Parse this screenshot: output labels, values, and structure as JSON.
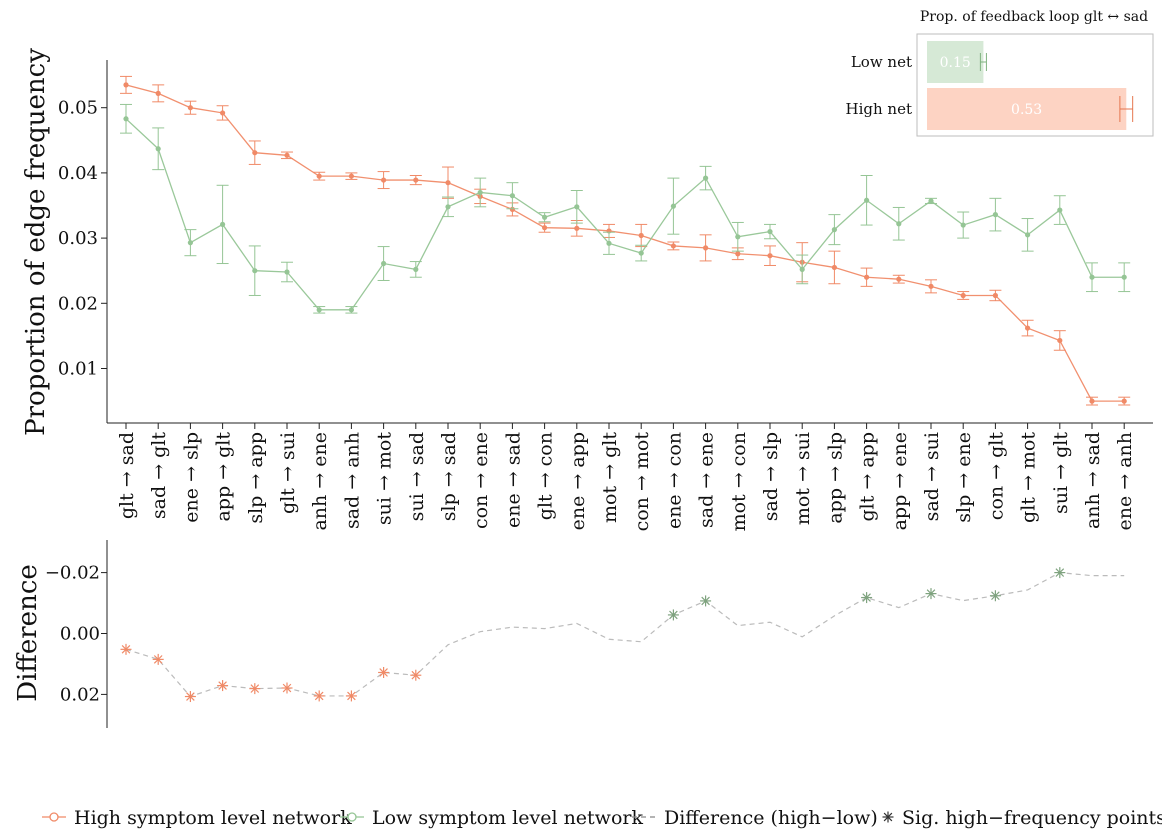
{
  "chart_data": [
    {
      "type": "line",
      "ylabel": "Proportion of edge frequency",
      "ylim": [
        0.0,
        0.058
      ],
      "yticks": [
        0.01,
        0.02,
        0.03,
        0.04,
        0.05
      ],
      "ytick_labels": [
        "0.01",
        "0.02",
        "0.03",
        "0.04",
        "0.05"
      ],
      "categories": [
        "glt → sad",
        "sad → glt",
        "ene → slp",
        "app → glt",
        "slp → app",
        "glt → sui",
        "anh → ene",
        "sad → anh",
        "sui → mot",
        "sui → sad",
        "slp → sad",
        "con → ene",
        "ene → sad",
        "glt → con",
        "ene → app",
        "mot → glt",
        "con → mot",
        "ene → con",
        "sad → ene",
        "mot → con",
        "sad → slp",
        "mot → sui",
        "app → slp",
        "glt → app",
        "app → ene",
        "sad → sui",
        "slp → ene",
        "con → glt",
        "glt → mot",
        "sui → glt",
        "anh → sad",
        "ene → anh"
      ],
      "series": [
        {
          "name": "High symptom level network",
          "color": "#F08A67",
          "values": [
            0.0535,
            0.0522,
            0.05,
            0.0492,
            0.0431,
            0.0427,
            0.0395,
            0.0395,
            0.0389,
            0.0389,
            0.0385,
            0.0364,
            0.0344,
            0.0316,
            0.0315,
            0.0311,
            0.0304,
            0.0288,
            0.0285,
            0.0276,
            0.0273,
            0.0263,
            0.0255,
            0.024,
            0.0237,
            0.0226,
            0.0212,
            0.0212,
            0.0162,
            0.0143,
            0.005,
            0.005
          ],
          "err": [
            0.0013,
            0.0013,
            0.001,
            0.0011,
            0.0018,
            0.0005,
            0.0006,
            0.0005,
            0.0013,
            0.0007,
            0.0024,
            0.0011,
            0.001,
            0.0007,
            0.0012,
            0.001,
            0.0017,
            0.0006,
            0.002,
            0.0009,
            0.0015,
            0.003,
            0.0025,
            0.0014,
            0.0006,
            0.001,
            0.0006,
            0.0008,
            0.0012,
            0.0015,
            0.0006,
            0.0006
          ]
        },
        {
          "name": "Low symptom level network",
          "color": "#95C595",
          "values": [
            0.0483,
            0.0437,
            0.0293,
            0.0321,
            0.025,
            0.0248,
            0.019,
            0.019,
            0.0261,
            0.0252,
            0.0348,
            0.037,
            0.0365,
            0.0332,
            0.0348,
            0.0292,
            0.0277,
            0.0349,
            0.0392,
            0.0302,
            0.031,
            0.0252,
            0.0313,
            0.0358,
            0.0322,
            0.0357,
            0.032,
            0.0336,
            0.0305,
            0.0343,
            0.024,
            0.024
          ],
          "err": [
            0.0022,
            0.0032,
            0.002,
            0.006,
            0.0038,
            0.0015,
            0.0005,
            0.0005,
            0.0026,
            0.0012,
            0.0015,
            0.0022,
            0.002,
            0.0007,
            0.0025,
            0.0017,
            0.0012,
            0.0043,
            0.0018,
            0.0022,
            0.0011,
            0.0022,
            0.0023,
            0.0038,
            0.0025,
            0.0004,
            0.002,
            0.0025,
            0.0025,
            0.0022,
            0.0022,
            0.0022
          ]
        }
      ]
    },
    {
      "type": "line",
      "ylabel": "Difference",
      "ylim": [
        0.03,
        -0.03
      ],
      "yticks": [
        -0.02,
        0.0,
        0.02
      ],
      "ytick_labels": [
        "−0.02",
        "0.00",
        "0.02"
      ],
      "series": [
        {
          "name": "Difference (high−low)",
          "color": "#BBBBBB",
          "values": [
            0.0052,
            0.0085,
            0.0207,
            0.0171,
            0.0181,
            0.0179,
            0.0205,
            0.0205,
            0.0128,
            0.0137,
            0.0037,
            -0.0006,
            -0.0021,
            -0.0016,
            -0.0033,
            0.0019,
            0.0027,
            -0.0061,
            -0.0107,
            -0.0026,
            -0.0037,
            0.0011,
            -0.0058,
            -0.0118,
            -0.0085,
            -0.0131,
            -0.0108,
            -0.0124,
            -0.0143,
            -0.02,
            -0.019,
            -0.019
          ]
        }
      ],
      "sig_points": {
        "name": "Sig. high−frequency points",
        "high_indices": [
          0,
          1,
          2,
          3,
          4,
          5,
          6,
          7,
          8,
          9
        ],
        "low_indices": [
          17,
          18,
          23,
          25,
          27,
          29
        ],
        "high_color": "#F08A67",
        "low_color": "#7FA37F"
      }
    },
    {
      "type": "bar",
      "title": "Prop. of feedback loop glt ↔ sad",
      "categories": [
        "Low net",
        "High net"
      ],
      "values": [
        0.15,
        0.53
      ],
      "value_labels": [
        "0.15",
        "0.53"
      ],
      "err": [
        0.008,
        0.017
      ],
      "colors": [
        "#D6E9D6",
        "#FDD3C3"
      ],
      "err_colors": [
        "#7FB27F",
        "#E5764F"
      ],
      "xlim": [
        0,
        0.57
      ]
    }
  ],
  "legend": [
    {
      "label": "High symptom level network",
      "marker": "circle-line",
      "color": "#F08A67"
    },
    {
      "label": "Low symptom level network",
      "marker": "circle-line",
      "color": "#95C595"
    },
    {
      "label": "Difference (high−low)",
      "marker": "dashed",
      "color": "#888888"
    },
    {
      "label": "Sig. high−frequency points",
      "marker": "asterisk",
      "color": "#333333"
    }
  ]
}
